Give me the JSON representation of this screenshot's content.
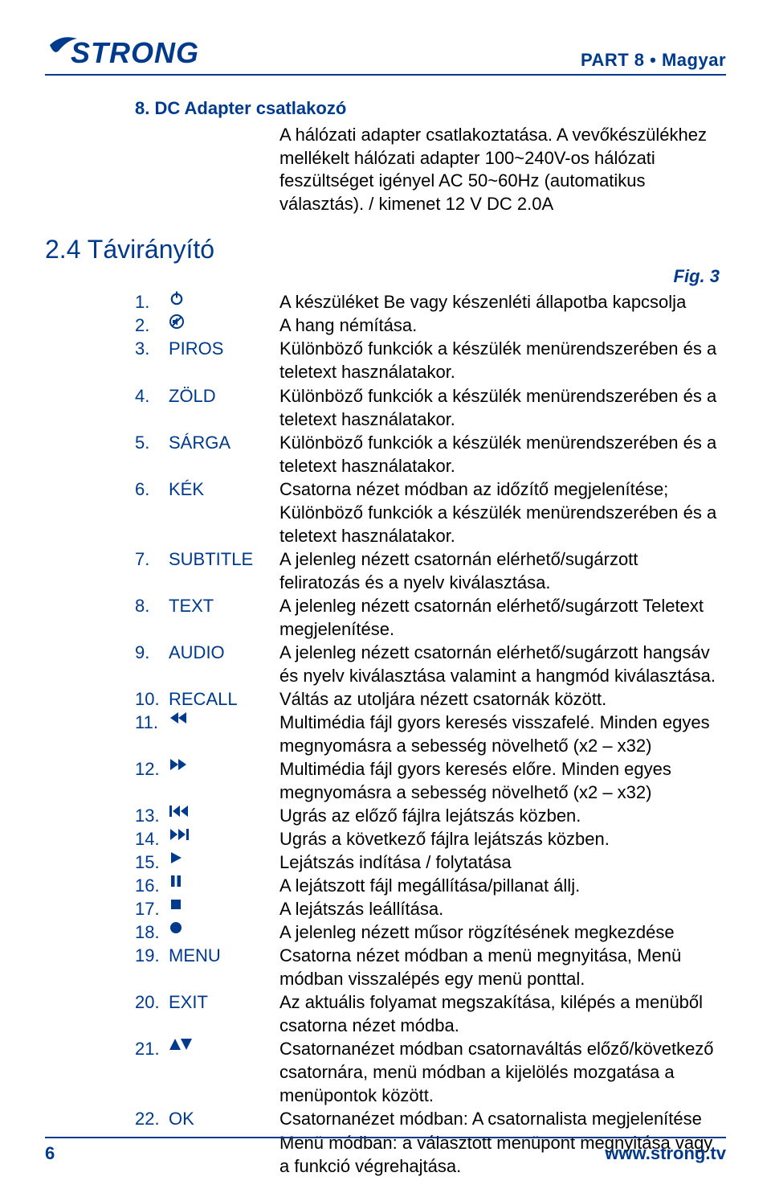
{
  "colors": {
    "brand": "#003a8c",
    "text": "#000000",
    "background": "#ffffff"
  },
  "header": {
    "part_label": "PART 8 • Magyar",
    "logo_text": "STRONG"
  },
  "section8": {
    "title": "8.   DC Adapter csatlakozó",
    "body": "A hálózati adapter csatlakoztatása. A vevőkészülékhez mellékelt hálózati adapter 100~240V-os hálózati feszültséget igényel AC 50~60Hz (automatikus választás). / kimenet 12 V DC 2.0A"
  },
  "section24": {
    "title": "2.4 Távirányító",
    "figure_ref": "Fig. 3"
  },
  "remote": [
    {
      "num": "1.",
      "key_icon": "power",
      "key_text": "",
      "desc": "A készüléket Be vagy készenléti állapotba kapcsolja"
    },
    {
      "num": "2.",
      "key_icon": "mute",
      "key_text": "",
      "desc": "A hang némítása."
    },
    {
      "num": "3.",
      "key_icon": "",
      "key_text": "PIROS",
      "desc": "Különböző funkciók a készülék menürendszerében és a teletext használatakor."
    },
    {
      "num": "4.",
      "key_icon": "",
      "key_text": "ZÖLD",
      "desc": "Különböző funkciók a készülék menürendszerében és a teletext használatakor."
    },
    {
      "num": "5.",
      "key_icon": "",
      "key_text": "SÁRGA",
      "desc": "Különböző funkciók a készülék menürendszerében és a teletext használatakor."
    },
    {
      "num": "6.",
      "key_icon": "",
      "key_text": "KÉK",
      "desc": "Csatorna nézet módban az időzítő megjelenítése; Különböző funkciók a készülék menürendszerében és a teletext használatakor."
    },
    {
      "num": "7.",
      "key_icon": "",
      "key_text": "SUBTITLE",
      "desc": "A jelenleg nézett csatornán elérhető/sugárzott feliratozás és a nyelv kiválasztása."
    },
    {
      "num": "8.",
      "key_icon": "",
      "key_text": "TEXT",
      "desc": "A jelenleg nézett csatornán elérhető/sugárzott Teletext megjelenítése."
    },
    {
      "num": "9.",
      "key_icon": "",
      "key_text": "AUDIO",
      "desc": "A jelenleg nézett csatornán elérhető/sugárzott hangsáv és nyelv kiválasztása valamint a hangmód kiválasztása."
    },
    {
      "num": "10.",
      "key_icon": "",
      "key_text": "RECALL",
      "desc": "Váltás az utoljára nézett csatornák között."
    },
    {
      "num": "11.",
      "key_icon": "rewind",
      "key_text": "",
      "desc": "Multimédia fájl gyors keresés visszafelé. Minden egyes megnyomásra a sebesség növelhető (x2 – x32)"
    },
    {
      "num": "12.",
      "key_icon": "ffwd",
      "key_text": "",
      "desc": "Multimédia fájl gyors keresés előre. Minden egyes megnyomásra a sebesség növelhető (x2 – x32)"
    },
    {
      "num": "13.",
      "key_icon": "prev",
      "key_text": "",
      "desc": "Ugrás az előző fájlra lejátszás közben."
    },
    {
      "num": "14.",
      "key_icon": "next",
      "key_text": "",
      "desc": "Ugrás a következő fájlra lejátszás közben."
    },
    {
      "num": "15.",
      "key_icon": "play",
      "key_text": "",
      "desc": "Lejátszás indítása / folytatása"
    },
    {
      "num": "16.",
      "key_icon": "pause",
      "key_text": "",
      "desc": "A lejátszott fájl megállítása/pillanat állj."
    },
    {
      "num": "17.",
      "key_icon": "stop",
      "key_text": "",
      "desc": "A lejátszás leállítása."
    },
    {
      "num": "18.",
      "key_icon": "record",
      "key_text": "",
      "desc": "A jelenleg nézett műsor rögzítésének megkezdése"
    },
    {
      "num": "19.",
      "key_icon": "",
      "key_text": "MENU",
      "desc": "Csatorna nézet módban a menü megnyitása, Menü módban visszalépés egy menü ponttal."
    },
    {
      "num": "20.",
      "key_icon": "",
      "key_text": "EXIT",
      "desc": "Az aktuális folyamat megszakítása, kilépés a menüből csatorna nézet módba."
    },
    {
      "num": "21.",
      "key_icon": "updown",
      "key_text": "",
      "desc": "Csatornanézet módban csatornaváltás előző/következő csatornára, menü módban a kijelölés mozgatása a menüpontok között."
    },
    {
      "num": "22.",
      "key_icon": "",
      "key_text": "OK",
      "desc": "Csatornanézet módban: A csatornalista megjelenítése Menü módban: a választott menüpont megnyitása vagy a funkció végrehajtása."
    }
  ],
  "footer": {
    "page": "6",
    "site": "www.strong.tv"
  }
}
